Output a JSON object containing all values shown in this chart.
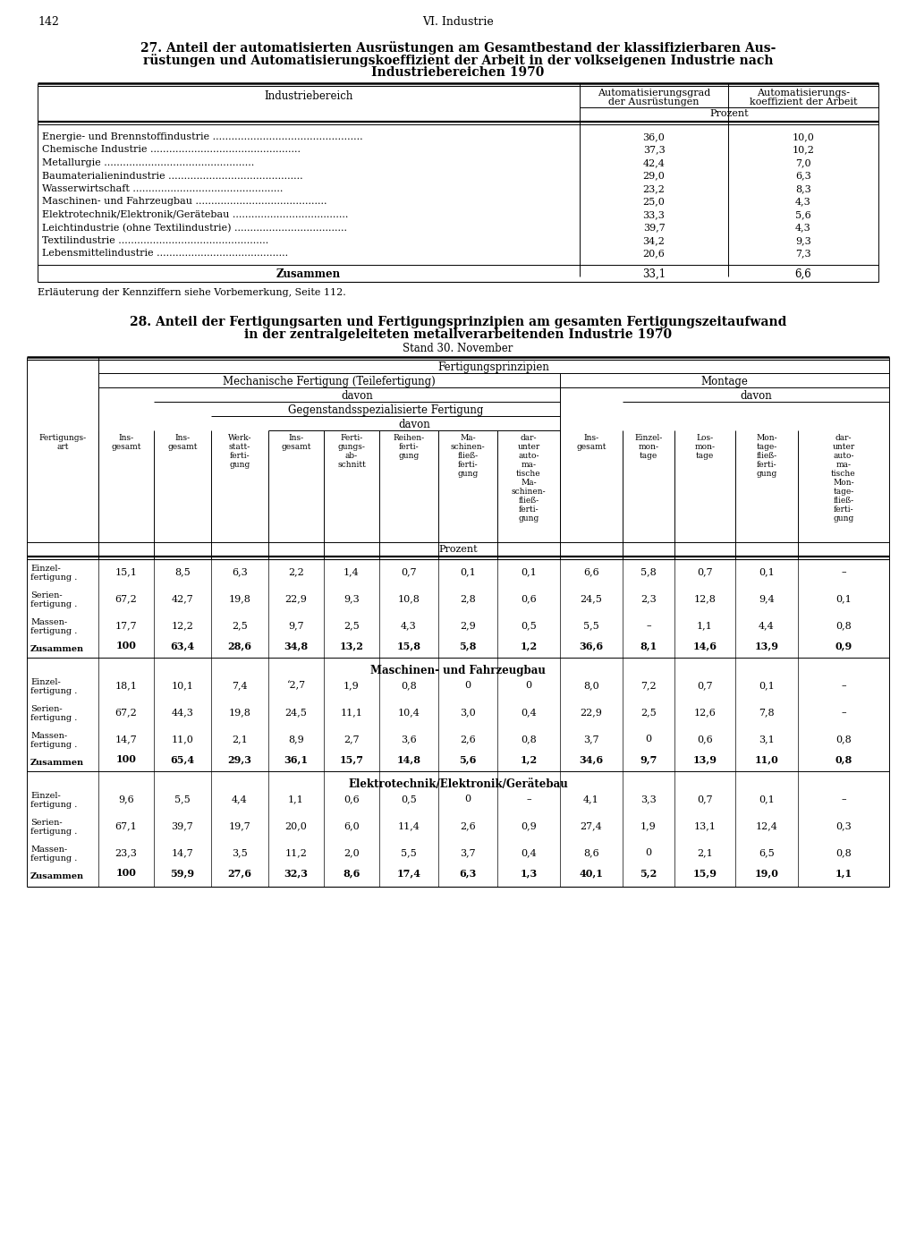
{
  "page_number": "142",
  "page_header": "VI. Industrie",
  "table1": {
    "title_line1": "27. Anteil der automatisierten Ausrüstungen am Gesamtbestand der klassifizierbaren Aus-",
    "title_line2": "rüstungen und Automatisierungskoeffizient der Arbeit in der volkseigenen Industrie nach",
    "title_line3": "Industriebereichen 1970",
    "col1_header": "Industriebereich",
    "col2_header_line1": "Automatisierungsgrad",
    "col2_header_line2": "der Ausrüstungen",
    "col3_header_line1": "Automatisierungs-",
    "col3_header_line2": "koeffizient der Arbeit",
    "col_unit": "Prozent",
    "rows": [
      [
        "Energie- und Brennstoffindustrie",
        "36,0",
        "10,0"
      ],
      [
        "Chemische Industrie",
        "37,3",
        "10,2"
      ],
      [
        "Metallurgie",
        "42,4",
        "7,0"
      ],
      [
        "Baumaterialienindustrie",
        "29,0",
        "6,3"
      ],
      [
        "Wasserwirtschaft",
        "23,2",
        "8,3"
      ],
      [
        "Maschinen- und Fahrzeugbau",
        "25,0",
        "4,3"
      ],
      [
        "Elektrotechnik/Elektronik/Gerätebau",
        "33,3",
        "5,6"
      ],
      [
        "Leichtindustrie (ohne Textilindustrie)",
        "39,7",
        "4,3"
      ],
      [
        "Textilindustrie",
        "34,2",
        "9,3"
      ],
      [
        "Lebensmittelindustrie",
        "20,6",
        "7,3"
      ]
    ],
    "summary_label": "Zusammen",
    "summary_col2": "33,1",
    "summary_col3": "6,6",
    "footnote": "Erläuterung der Kennziffern siehe Vorbemerkung, Seite 112."
  },
  "table2": {
    "title_line1": "28. Anteil der Fertigungsarten und Fertigungsprinzipien am gesamten Fertigungszeitaufwand",
    "title_line2": "in der zentralgeleiteten metallverarbeitenden Industrie 1970",
    "subtitle": "Stand 30. November",
    "sections": [
      {
        "name": "",
        "rows": [
          [
            "Einzel-\nfertigung .",
            "15,1",
            "8,5",
            "6,3",
            "2,2",
            "1,4",
            "0,7",
            "0,1",
            "0,1",
            "6,6",
            "5,8",
            "0,7",
            "0,1",
            "–"
          ],
          [
            "Serien-\nfertigung .",
            "67,2",
            "42,7",
            "19,8",
            "22,9",
            "9,3",
            "10,8",
            "2,8",
            "0,6",
            "24,5",
            "2,3",
            "12,8",
            "9,4",
            "0,1"
          ],
          [
            "Massen-\nfertigung .",
            "17,7",
            "12,2",
            "2,5",
            "9,7",
            "2,5",
            "4,3",
            "2,9",
            "0,5",
            "5,5",
            "–",
            "1,1",
            "4,4",
            "0,8"
          ],
          [
            "Zusammen",
            "100",
            "63,4",
            "28,6",
            "34,8",
            "13,2",
            "15,8",
            "5,8",
            "1,2",
            "36,6",
            "8,1",
            "14,6",
            "13,9",
            "0,9"
          ]
        ]
      },
      {
        "name": "Maschinen- und Fahrzeugbau",
        "rows": [
          [
            "Einzel-\nfertigung .",
            "18,1",
            "10,1",
            "7,4",
            "‘2,7",
            "1,9",
            "0,8",
            "0",
            "0",
            "8,0",
            "7,2",
            "0,7",
            "0,1",
            "–"
          ],
          [
            "Serien-\nfertigung .",
            "67,2",
            "44,3",
            "19,8",
            "24,5",
            "11,1",
            "10,4",
            "3,0",
            "0,4",
            "22,9",
            "2,5",
            "12,6",
            "7,8",
            "–"
          ],
          [
            "Massen-\nfertigung .",
            "14,7",
            "11,0",
            "2,1",
            "8,9",
            "2,7",
            "3,6",
            "2,6",
            "0,8",
            "3,7",
            "0",
            "0,6",
            "3,1",
            "0,8"
          ],
          [
            "Zusammen",
            "100",
            "65,4",
            "29,3",
            "36,1",
            "15,7",
            "14,8",
            "5,6",
            "1,2",
            "34,6",
            "9,7",
            "13,9",
            "11,0",
            "0,8"
          ]
        ]
      },
      {
        "name": "Elektrotechnik/Elektronik/Gerätebau",
        "rows": [
          [
            "Einzel-\nfertigung .",
            "9,6",
            "5,5",
            "4,4",
            "1,1",
            "0,6",
            "0,5",
            "0",
            "–",
            "4,1",
            "3,3",
            "0,7",
            "0,1",
            "–"
          ],
          [
            "Serien-\nfertigung .",
            "67,1",
            "39,7",
            "19,7",
            "20,0",
            "6,0",
            "11,4",
            "2,6",
            "0,9",
            "27,4",
            "1,9",
            "13,1",
            "12,4",
            "0,3"
          ],
          [
            "Massen-\nfertigung .",
            "23,3",
            "14,7",
            "3,5",
            "11,2",
            "2,0",
            "5,5",
            "3,7",
            "0,4",
            "8,6",
            "0",
            "2,1",
            "6,5",
            "0,8"
          ],
          [
            "Zusammen",
            "100",
            "59,9",
            "27,6",
            "32,3",
            "8,6",
            "17,4",
            "6,3",
            "1,3",
            "40,1",
            "5,2",
            "15,9",
            "19,0",
            "1,1"
          ]
        ]
      }
    ]
  }
}
